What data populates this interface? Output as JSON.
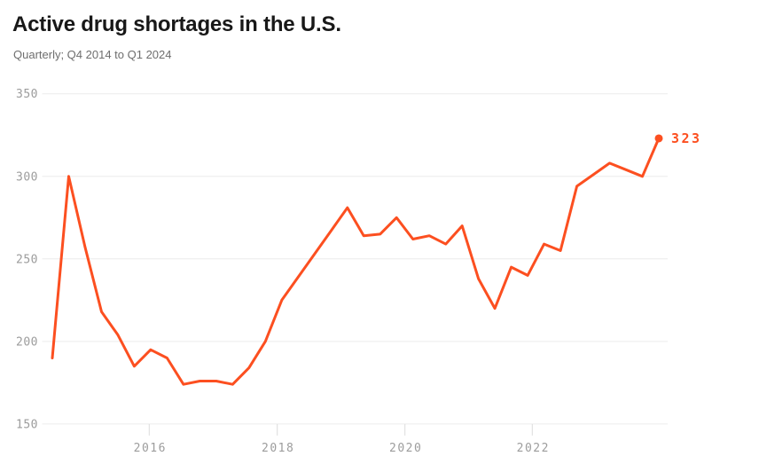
{
  "header": {
    "title": "Active drug shortages in the U.S.",
    "subtitle": "Quarterly; Q4 2014 to Q1 2024"
  },
  "chart_data": {
    "type": "line",
    "title": "Active drug shortages in the U.S.",
    "subtitle": "Quarterly; Q4 2014 to Q1 2024",
    "series_name": "Active drug shortages",
    "x_unit": "quarter",
    "categories": [
      "Q4 2014",
      "Q1 2015",
      "Q2 2015",
      "Q3 2015",
      "Q4 2015",
      "Q1 2016",
      "Q2 2016",
      "Q3 2016",
      "Q4 2016",
      "Q1 2017",
      "Q2 2017",
      "Q3 2017",
      "Q4 2017",
      "Q1 2018",
      "Q2 2018",
      "Q3 2018",
      "Q4 2018",
      "Q1 2019",
      "Q2 2019",
      "Q3 2019",
      "Q4 2019",
      "Q1 2020",
      "Q2 2020",
      "Q3 2020",
      "Q4 2020",
      "Q1 2021",
      "Q2 2021",
      "Q3 2021",
      "Q4 2021",
      "Q1 2022",
      "Q2 2022",
      "Q3 2022",
      "Q4 2022",
      "Q1 2023",
      "Q2 2023",
      "Q3 2023",
      "Q4 2023",
      "Q1 2024"
    ],
    "values": [
      190,
      300,
      257,
      218,
      204,
      185,
      195,
      190,
      174,
      176,
      176,
      174,
      184,
      200,
      225,
      239,
      253,
      267,
      281,
      264,
      265,
      275,
      262,
      264,
      259,
      270,
      238,
      220,
      245,
      240,
      259,
      255,
      294,
      301,
      308,
      304,
      300,
      323
    ],
    "ylim": [
      150,
      350
    ],
    "yticks": [
      350,
      300,
      250,
      200,
      150
    ],
    "xticks": [
      "2016",
      "2018",
      "2020",
      "2022"
    ],
    "grid": "horizontal gridlines only",
    "legend": "none",
    "end_label": "323",
    "colors": {
      "line": "#fc4f20",
      "end_label": "#fc4f20",
      "grid": "#ececec",
      "tick": "#dcdcdc",
      "axis_text": "#9c9c9c",
      "title": "#181818",
      "subtitle": "#6e6e6e",
      "background": "#ffffff"
    }
  }
}
